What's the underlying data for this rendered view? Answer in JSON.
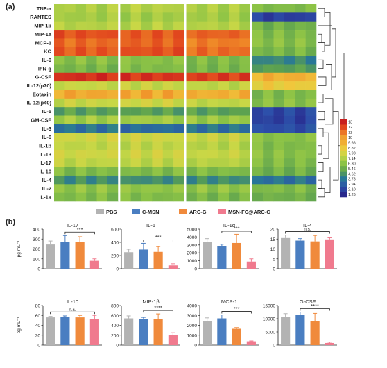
{
  "panel_labels": {
    "a": "(a)",
    "b": "(b)"
  },
  "legend_groups": [
    "PBS",
    "C-MSN",
    "ARC-G",
    "MSN-FC@ARC-G"
  ],
  "colors": {
    "PBS": "#b3b3b3",
    "C-MSN": "#4a7ec1",
    "ARC-G": "#f08a3c",
    "MSN-FC@ARC-G": "#f07a8e"
  },
  "chart_data": [
    {
      "type": "heatmap",
      "rows": [
        "TNF-a",
        "RANTES",
        "MIP-1b",
        "MIP-1a",
        "MCP-1",
        "KC",
        "IL-9",
        "IFN-g",
        "G-CSF",
        "IL-12(p70)",
        "Eotaxin",
        "IL-12(p40)",
        "IL-5",
        "GM-CSF",
        "IL-3",
        "IL-6",
        "IL-1b",
        "IL-13",
        "IL-17",
        "IL-10",
        "IL-4",
        "IL-2",
        "IL-1a"
      ],
      "groups": 4,
      "columns_per_group": 6,
      "colorbar_ticks": [
        "13",
        "12",
        "11",
        "10",
        "9.66",
        "8.82",
        "7.98",
        "7.14",
        "6.30",
        "5.46",
        "4.62",
        "3.78",
        "2.94",
        "2.10",
        "1.26"
      ],
      "row_levels_per_group": [
        [
          7.0,
          7.2,
          7.0,
          6.0
        ],
        [
          6.8,
          6.8,
          6.8,
          2.0
        ],
        [
          7.2,
          7.2,
          7.2,
          5.6
        ],
        [
          11.8,
          11.6,
          11.4,
          6.0
        ],
        [
          11.2,
          11.4,
          10.8,
          6.2
        ],
        [
          11.6,
          11.8,
          11.2,
          5.8
        ],
        [
          6.2,
          6.2,
          6.0,
          4.2
        ],
        [
          5.8,
          6.0,
          5.8,
          5.0
        ],
        [
          12.6,
          12.4,
          12.2,
          9.6
        ],
        [
          7.6,
          7.6,
          7.4,
          8.8
        ],
        [
          9.8,
          9.8,
          9.6,
          6.0
        ],
        [
          7.6,
          7.8,
          7.4,
          6.2
        ],
        [
          5.0,
          5.0,
          5.0,
          2.2
        ],
        [
          6.8,
          6.8,
          6.6,
          2.0
        ],
        [
          3.6,
          3.4,
          3.6,
          2.4
        ],
        [
          7.8,
          7.8,
          7.6,
          6.2
        ],
        [
          7.4,
          7.4,
          7.2,
          6.0
        ],
        [
          7.8,
          7.8,
          7.6,
          6.2
        ],
        [
          7.4,
          7.4,
          7.2,
          6.0
        ],
        [
          6.0,
          6.0,
          6.0,
          5.6
        ],
        [
          4.4,
          4.4,
          4.4,
          3.6
        ],
        [
          6.4,
          6.4,
          6.4,
          6.0
        ],
        [
          6.0,
          6.0,
          5.8,
          5.6
        ]
      ]
    },
    {
      "type": "bar",
      "title": "IL-17",
      "ylabel": "pg mL⁻¹",
      "categories": [
        "PBS",
        "C-MSN",
        "ARC-G",
        "MSN-FC@ARC-G"
      ],
      "values": [
        245,
        270,
        268,
        80
      ],
      "errors": [
        35,
        65,
        55,
        20
      ],
      "ylim": [
        0,
        400
      ],
      "yticks": [
        0,
        100,
        200,
        300,
        400
      ],
      "sig": "***"
    },
    {
      "type": "bar",
      "title": "IL-6",
      "ylabel": "",
      "categories": [
        "PBS",
        "C-MSN",
        "ARC-G",
        "MSN-FC@ARC-G"
      ],
      "values": [
        250,
        290,
        255,
        50
      ],
      "errors": [
        45,
        95,
        80,
        25
      ],
      "ylim": [
        0,
        600
      ],
      "yticks": [
        0,
        200,
        400,
        600
      ],
      "sig": "***"
    },
    {
      "type": "bar",
      "title": "IL-1α",
      "ylabel": "",
      "categories": [
        "PBS",
        "C-MSN",
        "ARC-G",
        "MSN-FC@ARC-G"
      ],
      "values": [
        3400,
        2850,
        3250,
        900
      ],
      "errors": [
        400,
        250,
        1100,
        350
      ],
      "ylim": [
        0,
        5000
      ],
      "yticks": [
        0,
        1000,
        2000,
        3000,
        4000,
        5000
      ],
      "sig": "***"
    },
    {
      "type": "bar",
      "title": "IL-4",
      "ylabel": "",
      "categories": [
        "PBS",
        "C-MSN",
        "ARC-G",
        "MSN-FC@ARC-G"
      ],
      "values": [
        15.5,
        14.2,
        13.8,
        14.8
      ],
      "errors": [
        1.5,
        1.0,
        3.0,
        0.8
      ],
      "ylim": [
        0,
        20
      ],
      "yticks": [
        0,
        5,
        10,
        15,
        20
      ],
      "sig": "n.s."
    },
    {
      "type": "bar",
      "title": "IL-10",
      "ylabel": "pg mL⁻¹",
      "categories": [
        "PBS",
        "C-MSN",
        "ARC-G",
        "MSN-FC@ARC-G"
      ],
      "values": [
        56,
        57,
        56,
        52
      ],
      "errors": [
        2,
        2,
        4,
        8
      ],
      "ylim": [
        0,
        80
      ],
      "yticks": [
        0,
        20,
        40,
        60,
        80
      ],
      "sig": "n.s."
    },
    {
      "type": "bar",
      "title": "MIP-1β",
      "ylabel": "",
      "categories": [
        "PBS",
        "C-MSN",
        "ARC-G",
        "MSN-FC@ARC-G"
      ],
      "values": [
        540,
        530,
        520,
        200
      ],
      "errors": [
        50,
        30,
        110,
        50
      ],
      "ylim": [
        0,
        800
      ],
      "yticks": [
        0,
        200,
        400,
        600,
        800
      ],
      "sig": "****"
    },
    {
      "type": "bar",
      "title": "MCP-1",
      "ylabel": "",
      "categories": [
        "PBS",
        "C-MSN",
        "ARC-G",
        "MSN-FC@ARC-G"
      ],
      "values": [
        2400,
        2700,
        1650,
        380
      ],
      "errors": [
        350,
        350,
        120,
        40
      ],
      "ylim": [
        0,
        4000
      ],
      "yticks": [
        0,
        1000,
        2000,
        3000,
        4000
      ],
      "sig": "***"
    },
    {
      "type": "bar",
      "title": "G-CSF",
      "ylabel": "",
      "categories": [
        "PBS",
        "C-MSN",
        "ARC-G",
        "MSN-FC@ARC-G"
      ],
      "values": [
        10700,
        11500,
        9200,
        800
      ],
      "errors": [
        1200,
        1000,
        2800,
        300
      ],
      "ylim": [
        0,
        15000
      ],
      "yticks": [
        0,
        5000,
        10000,
        15000
      ],
      "sig": "****"
    }
  ]
}
